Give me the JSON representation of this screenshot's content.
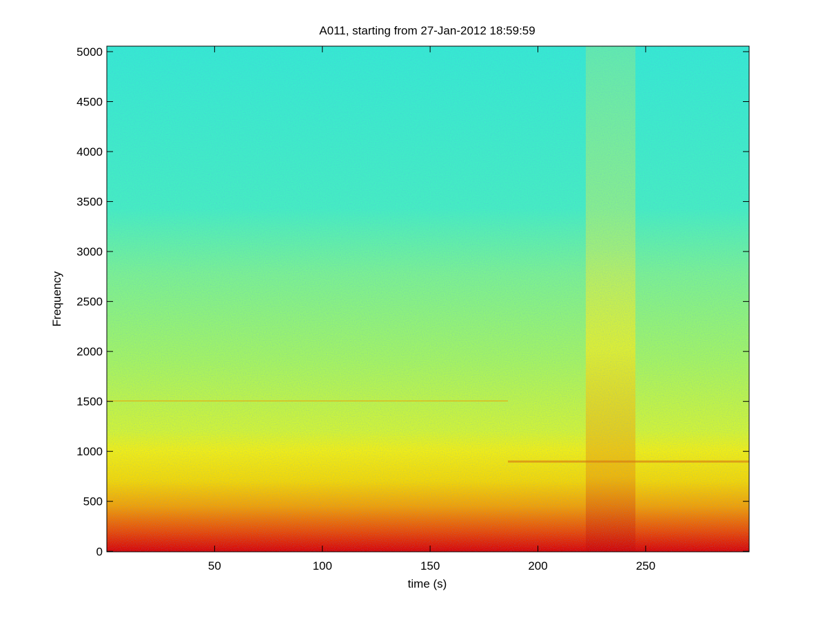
{
  "chart_data": {
    "type": "spectrogram",
    "title": "A011, starting from 27-Jan-2012 18:59:59",
    "x_label": "time (s)",
    "y_label": "Frequency",
    "xlim": [
      0,
      298
    ],
    "ylim": [
      -5,
      5055
    ],
    "xticks": [
      50,
      100,
      150,
      200,
      250
    ],
    "yticks": [
      0,
      500,
      1000,
      1500,
      2000,
      2500,
      3000,
      3500,
      4000,
      4500,
      5000
    ],
    "colormap": "jet"
  }
}
